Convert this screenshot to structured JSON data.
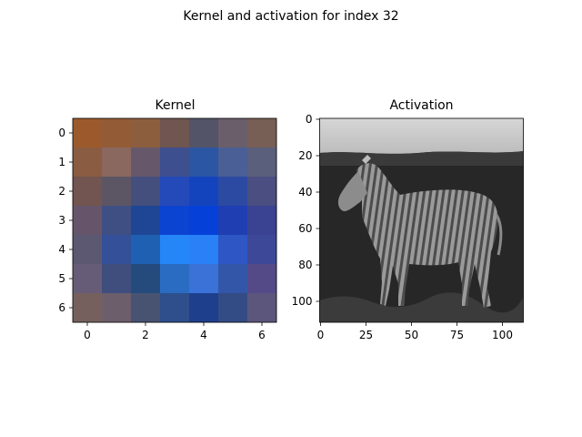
{
  "figure": {
    "suptitle": "Kernel and activation for index 32"
  },
  "chart_data": [
    {
      "type": "heatmap",
      "title": "Kernel",
      "xlabel": "",
      "ylabel": "",
      "rows": 7,
      "cols": 7,
      "xlim": [
        -0.5,
        6.5
      ],
      "ylim": [
        6.5,
        -0.5
      ],
      "x_ticks": [
        0,
        2,
        4,
        6
      ],
      "y_ticks": [
        0,
        1,
        2,
        3,
        4,
        5,
        6
      ],
      "cells": [
        [
          "#9c5a2c",
          "#935c36",
          "#8d5e3e",
          "#6f5650",
          "#535467",
          "#6a5e6a",
          "#775f55"
        ],
        [
          "#8a5c42",
          "#8a6860",
          "#66586a",
          "#3e4f8f",
          "#2a56a4",
          "#4a5f95",
          "#5a5f7c"
        ],
        [
          "#725450",
          "#5c5564",
          "#444f7e",
          "#2449b8",
          "#1444bd",
          "#2c4aa1",
          "#4a4e80"
        ],
        [
          "#66556a",
          "#3f4f84",
          "#1f4694",
          "#0c44d2",
          "#0541d8",
          "#1f3eb2",
          "#3a4292"
        ],
        [
          "#5c5872",
          "#345098",
          "#2060b2",
          "#2486f7",
          "#2a80f6",
          "#2e56c4",
          "#3e4898"
        ],
        [
          "#675c78",
          "#404e7e",
          "#254b7c",
          "#2a6cc2",
          "#3a72d8",
          "#3456a9",
          "#544a88"
        ],
        [
          "#75605e",
          "#6d5e6b",
          "#485372",
          "#2e4f8c",
          "#1e3f8c",
          "#344c86",
          "#5c567c"
        ]
      ]
    },
    {
      "type": "image",
      "title": "Activation",
      "xlabel": "",
      "ylabel": "",
      "image_size": [
        112,
        112
      ],
      "xlim": [
        -0.5,
        111.5
      ],
      "ylim": [
        111.5,
        -0.5
      ],
      "x_ticks": [
        0,
        25,
        50,
        75,
        100
      ],
      "y_ticks": [
        0,
        20,
        40,
        60,
        80,
        100
      ],
      "content": "grayscale activation map of a zebra standing in grass under a pale sky"
    }
  ],
  "colors": {
    "sky": "#c9c9c9",
    "background": "#2e2e2e",
    "ground": "#262626",
    "zebra_body": "#9a9a9a",
    "zebra_stripe": "#4a4a4a"
  }
}
